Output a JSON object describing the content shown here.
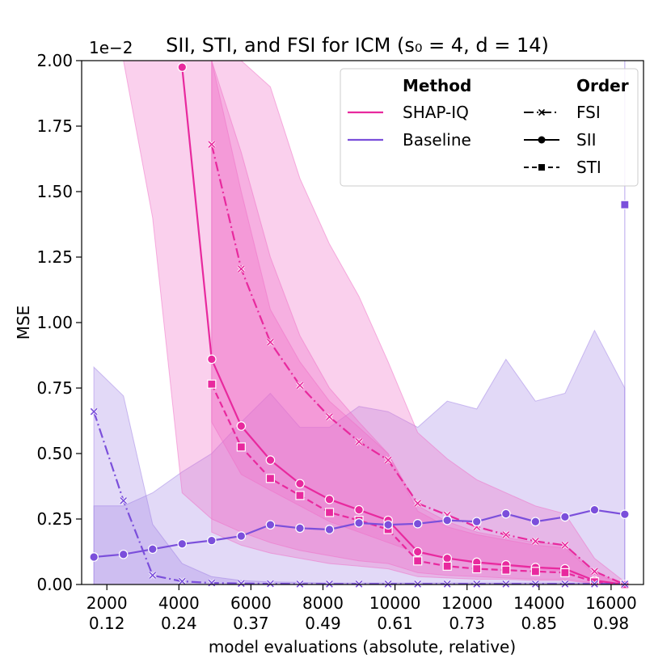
{
  "chart_data": {
    "type": "line",
    "title": "SII, STI, and FSI for ICM",
    "title_params": "(s₀ = 4, d = 14)",
    "xlabel": "model evaluations (absolute, relative)",
    "ylabel": "MSE",
    "y_scale_label": "1e−2",
    "xlim": [
      1300,
      16900
    ],
    "ylim": [
      0,
      2.0
    ],
    "yticks": [
      "0.00",
      "0.25",
      "0.50",
      "0.75",
      "1.00",
      "1.25",
      "1.50",
      "1.75",
      "2.00"
    ],
    "xticks": [
      {
        "abs": "2000",
        "rel": "0.12",
        "value": 2000
      },
      {
        "abs": "4000",
        "rel": "0.24",
        "value": 4000
      },
      {
        "abs": "6000",
        "rel": "0.37",
        "value": 6000
      },
      {
        "abs": "8000",
        "rel": "0.49",
        "value": 8000
      },
      {
        "abs": "10000",
        "rel": "0.61",
        "value": 10000
      },
      {
        "abs": "12000",
        "rel": "0.73",
        "value": 12000
      },
      {
        "abs": "14000",
        "rel": "0.85",
        "value": 14000
      },
      {
        "abs": "16000",
        "rel": "0.98",
        "value": 16000
      }
    ],
    "legend": {
      "position": "top-right",
      "method_header": "Method",
      "order_header": "Order",
      "methods": [
        {
          "name": "SHAP-IQ",
          "color": "#e8299e"
        },
        {
          "name": "Baseline",
          "color": "#7b4fdb"
        }
      ],
      "orders": [
        "FSI",
        "SII",
        "STI"
      ]
    },
    "colors": {
      "shapiq": "#e8299e",
      "baseline": "#7b4fdb",
      "shapiq_band": "#f06ec6",
      "baseline_band": "#9f82e6"
    },
    "x": [
      1640,
      2460,
      3270,
      4090,
      4910,
      5730,
      6540,
      7360,
      8180,
      9000,
      9810,
      10630,
      11450,
      12270,
      13080,
      13900,
      14720,
      15540,
      16380
    ],
    "series": [
      {
        "name": "SHAP-IQ FSI",
        "method": "shapiq",
        "order": "FSI",
        "dash": "dashdot",
        "marker": "x",
        "values": [
          null,
          null,
          null,
          null,
          1.68,
          1.205,
          0.925,
          0.76,
          0.64,
          0.545,
          0.475,
          0.31,
          0.265,
          0.22,
          0.19,
          0.165,
          0.15,
          0.05,
          0.0
        ],
        "band_lower": [
          null,
          null,
          null,
          null,
          0.62,
          0.42,
          0.36,
          0.3,
          0.24,
          0.2,
          0.16,
          0.12,
          0.1,
          0.08,
          0.07,
          0.06,
          0.05,
          0.02,
          0.0
        ],
        "band_upper": [
          null,
          null,
          null,
          null,
          2.0,
          2.0,
          1.9,
          1.55,
          1.3,
          1.1,
          0.85,
          0.58,
          0.48,
          0.4,
          0.35,
          0.3,
          0.27,
          0.1,
          0.01
        ]
      },
      {
        "name": "SHAP-IQ SII",
        "method": "shapiq",
        "order": "SII",
        "dash": "solid",
        "marker": "o",
        "values": [
          null,
          null,
          null,
          1.975,
          0.86,
          0.605,
          0.475,
          0.385,
          0.325,
          0.285,
          0.245,
          0.125,
          0.1,
          0.085,
          0.075,
          0.065,
          0.06,
          0.015,
          0.0
        ],
        "band_lower": [
          null,
          2.0,
          1.4,
          0.35,
          0.25,
          0.2,
          0.16,
          0.13,
          0.11,
          0.09,
          0.08,
          0.045,
          0.035,
          0.03,
          0.025,
          0.02,
          0.02,
          0.005,
          0.0
        ],
        "band_upper": [
          2.0,
          2.0,
          2.0,
          2.0,
          2.0,
          1.65,
          1.25,
          0.95,
          0.75,
          0.62,
          0.5,
          0.3,
          0.24,
          0.2,
          0.18,
          0.16,
          0.15,
          0.05,
          0.0
        ]
      },
      {
        "name": "SHAP-IQ STI",
        "method": "shapiq",
        "order": "STI",
        "dash": "dashed",
        "marker": "s",
        "values": [
          null,
          null,
          null,
          null,
          0.765,
          0.525,
          0.405,
          0.34,
          0.275,
          0.245,
          0.21,
          0.09,
          0.07,
          0.06,
          0.055,
          0.05,
          0.045,
          0.01,
          0.0
        ],
        "band_lower": [
          null,
          null,
          null,
          null,
          0.2,
          0.15,
          0.12,
          0.1,
          0.08,
          0.07,
          0.06,
          0.03,
          0.025,
          0.02,
          0.02,
          0.015,
          0.015,
          0.004,
          0.0
        ],
        "band_upper": [
          null,
          null,
          null,
          null,
          2.0,
          1.5,
          1.05,
          0.85,
          0.7,
          0.6,
          0.5,
          0.28,
          0.22,
          0.19,
          0.17,
          0.15,
          0.14,
          0.04,
          0.0
        ]
      },
      {
        "name": "Baseline SII",
        "method": "baseline",
        "order": "SII",
        "dash": "solid",
        "marker": "o",
        "values": [
          0.105,
          0.115,
          0.135,
          0.155,
          0.168,
          0.185,
          0.228,
          0.215,
          0.21,
          0.235,
          0.228,
          0.232,
          0.245,
          0.24,
          0.27,
          0.24,
          0.258,
          0.285,
          0.268
        ],
        "band_lower": [
          0.0,
          0.0,
          0.0,
          0.0,
          0.0,
          0.0,
          0.0,
          0.0,
          0.0,
          0.0,
          0.0,
          0.0,
          0.0,
          0.0,
          0.0,
          0.0,
          0.0,
          0.0,
          0.0
        ],
        "band_upper": [
          0.3,
          0.3,
          0.35,
          0.43,
          0.5,
          0.62,
          0.73,
          0.6,
          0.6,
          0.68,
          0.66,
          0.6,
          0.7,
          0.67,
          0.86,
          0.7,
          0.73,
          0.97,
          0.75
        ]
      },
      {
        "name": "Baseline FSI",
        "method": "baseline",
        "order": "FSI",
        "dash": "dashdot",
        "marker": "x",
        "values": [
          0.66,
          0.32,
          0.035,
          0.012,
          0.006,
          0.004,
          0.003,
          0.002,
          0.002,
          0.002,
          0.002,
          0.002,
          0.002,
          0.002,
          0.002,
          0.002,
          0.002,
          0.002,
          0.002
        ],
        "band_lower": [
          0.0,
          0.0,
          0.0,
          0.0,
          0.0,
          0.0,
          0.0,
          0.0,
          0.0,
          0.0,
          0.0,
          0.0,
          0.0,
          0.0,
          0.0,
          0.0,
          0.0,
          0.0,
          0.0
        ],
        "band_upper": [
          0.83,
          0.72,
          0.23,
          0.08,
          0.03,
          0.015,
          0.01,
          0.008,
          0.006,
          0.006,
          0.006,
          0.006,
          0.006,
          0.006,
          0.006,
          0.006,
          0.006,
          0.006,
          0.006
        ]
      },
      {
        "name": "Baseline STI",
        "method": "baseline",
        "order": "STI",
        "dash": "dashed",
        "marker": "s",
        "values": [
          null,
          null,
          null,
          null,
          null,
          null,
          null,
          null,
          null,
          null,
          null,
          null,
          null,
          null,
          null,
          null,
          null,
          null,
          1.45
        ],
        "band_lower": [],
        "band_upper": []
      }
    ]
  }
}
